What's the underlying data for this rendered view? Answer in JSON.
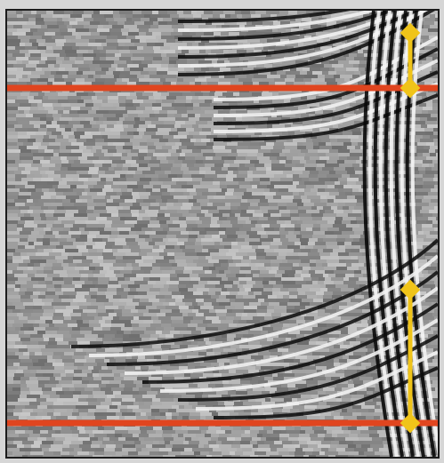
{
  "image": {
    "subject": "seismic-section",
    "palette": {
      "background": "#d6d6d6",
      "trace_dark": "#0a0a0a",
      "trace_light": "#f4f4f4",
      "noise_mid": "#8f8f8f"
    }
  },
  "overlay": {
    "horizon_color": "#e0451f",
    "marker_color": "#f0c419",
    "horizons": [
      "upper-horizon",
      "lower-horizon"
    ],
    "markers": [
      "upper-thickness-marker",
      "lower-thickness-marker"
    ]
  }
}
